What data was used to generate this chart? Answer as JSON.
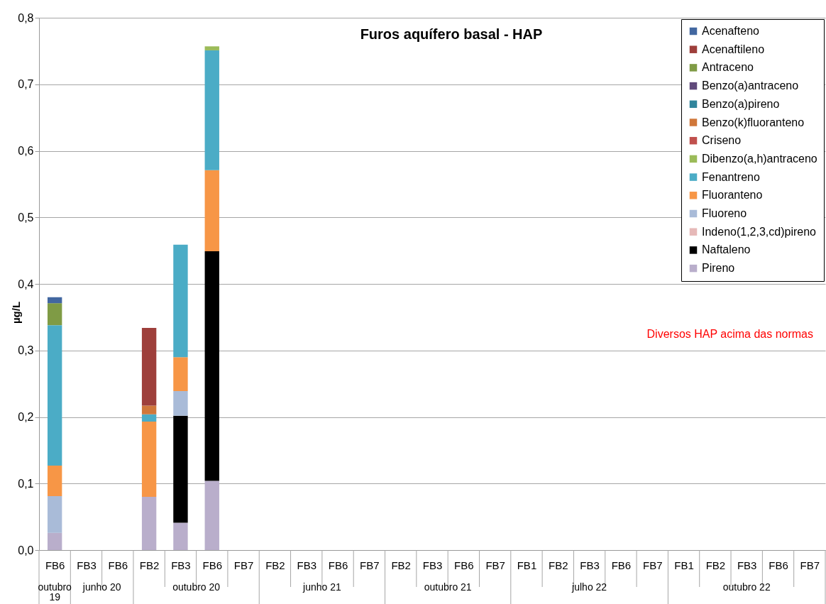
{
  "chart_data": {
    "type": "bar",
    "stacked": true,
    "title": "Furos aquífero basal - HAP",
    "ylabel": "µg/L",
    "categories": [
      "FB6",
      "FB3",
      "FB6",
      "FB2",
      "FB3",
      "FB6",
      "FB7",
      "FB2",
      "FB3",
      "FB6",
      "FB7",
      "FB2",
      "FB3",
      "FB6",
      "FB7",
      "FB1",
      "FB2",
      "FB3",
      "FB6",
      "FB7",
      "FB1",
      "FB2",
      "FB3",
      "FB6",
      "FB7"
    ],
    "annotations": [
      "outubro 19",
      "junho 20",
      "outubro 20",
      "junho 21",
      "outubro 21",
      "julho 22",
      "outubro 22",
      "Diversos HAP acima das normas"
    ],
    "ylim": [
      0,
      0.8
    ],
    "yticks": [
      {
        "value": 0,
        "label": "0,0"
      },
      {
        "value": 0.1,
        "label": "0,1"
      },
      {
        "value": 0.2,
        "label": "0,2"
      },
      {
        "value": 0.3,
        "label": "0,3"
      },
      {
        "value": 0.4,
        "label": "0,4"
      },
      {
        "value": 0.5,
        "label": "0,5"
      },
      {
        "value": 0.6,
        "label": "0,6"
      },
      {
        "value": 0.7,
        "label": "0,7"
      },
      {
        "value": 0.8,
        "label": "0,8"
      }
    ],
    "grid": "y",
    "legend": "top right",
    "series": [
      {
        "name": "Pireno",
        "color": "#b9aecb",
        "values": [
          0.026,
          null,
          null,
          0.08,
          0.041,
          0.104,
          null,
          null,
          null,
          null,
          null,
          null,
          null,
          null,
          null,
          null,
          null,
          null,
          null,
          null,
          null,
          null,
          null,
          null,
          null
        ]
      },
      {
        "name": "Naftaleno",
        "color": "#000000",
        "values": [
          null,
          null,
          null,
          null,
          0.161,
          0.345,
          null,
          null,
          null,
          null,
          null,
          null,
          null,
          null,
          null,
          null,
          null,
          null,
          null,
          null,
          null,
          null,
          null,
          null,
          null
        ]
      },
      {
        "name": "Indeno(1,2,3,cd)pireno",
        "color": "#e6b9b8",
        "values": [
          null,
          null,
          null,
          null,
          null,
          null,
          null,
          null,
          null,
          null,
          null,
          null,
          null,
          null,
          null,
          null,
          null,
          null,
          null,
          null,
          null,
          null,
          null,
          null,
          null
        ]
      },
      {
        "name": "Fluoreno",
        "color": "#a9bbd8",
        "values": [
          0.055,
          null,
          null,
          null,
          0.037,
          null,
          null,
          null,
          null,
          null,
          null,
          null,
          null,
          null,
          null,
          null,
          null,
          null,
          null,
          null,
          null,
          null,
          null,
          null,
          null
        ]
      },
      {
        "name": "Fluoranteno",
        "color": "#f79646",
        "values": [
          0.046,
          null,
          null,
          0.113,
          0.051,
          0.122,
          null,
          null,
          null,
          null,
          null,
          null,
          null,
          null,
          null,
          null,
          null,
          null,
          null,
          null,
          null,
          null,
          null,
          null,
          null
        ]
      },
      {
        "name": "Fenantreno",
        "color": "#4bacc6",
        "values": [
          0.211,
          null,
          null,
          0.011,
          0.169,
          0.18,
          null,
          null,
          null,
          null,
          null,
          null,
          null,
          null,
          null,
          null,
          null,
          null,
          null,
          null,
          null,
          null,
          null,
          null,
          null
        ]
      },
      {
        "name": "Dibenzo(a,h)antraceno",
        "color": "#9bbb59",
        "values": [
          null,
          null,
          null,
          null,
          null,
          0.006,
          null,
          null,
          null,
          null,
          null,
          null,
          null,
          null,
          null,
          null,
          null,
          null,
          null,
          null,
          null,
          null,
          null,
          null,
          null
        ]
      },
      {
        "name": "Criseno",
        "color": "#c0504d",
        "values": [
          null,
          null,
          null,
          null,
          null,
          null,
          null,
          null,
          null,
          null,
          null,
          null,
          null,
          null,
          null,
          null,
          null,
          null,
          null,
          null,
          null,
          null,
          null,
          null,
          null
        ]
      },
      {
        "name": "Benzo(k)fluoranteno",
        "color": "#d0773a",
        "values": [
          null,
          null,
          null,
          0.013,
          null,
          null,
          null,
          null,
          null,
          null,
          null,
          null,
          null,
          null,
          null,
          null,
          null,
          null,
          null,
          null,
          null,
          null,
          null,
          null,
          null
        ]
      },
      {
        "name": "Benzo(a)pireno",
        "color": "#31859c",
        "values": [
          null,
          null,
          null,
          null,
          null,
          null,
          null,
          null,
          null,
          null,
          null,
          null,
          null,
          null,
          null,
          null,
          null,
          null,
          null,
          null,
          null,
          null,
          null,
          null,
          null
        ]
      },
      {
        "name": "Benzo(a)antraceno",
        "color": "#604a7b",
        "values": [
          null,
          null,
          null,
          null,
          null,
          null,
          null,
          null,
          null,
          null,
          null,
          null,
          null,
          null,
          null,
          null,
          null,
          null,
          null,
          null,
          null,
          null,
          null,
          null,
          null
        ]
      },
      {
        "name": "Antraceno",
        "color": "#7f9b45",
        "values": [
          0.033,
          null,
          null,
          null,
          null,
          null,
          null,
          null,
          null,
          null,
          null,
          null,
          null,
          null,
          null,
          null,
          null,
          null,
          null,
          null,
          null,
          null,
          null,
          null,
          null
        ]
      },
      {
        "name": "Acenaftileno",
        "color": "#9e3f3b",
        "values": [
          null,
          null,
          null,
          0.117,
          null,
          null,
          null,
          null,
          null,
          null,
          null,
          null,
          null,
          null,
          null,
          null,
          null,
          null,
          null,
          null,
          null,
          null,
          null,
          null,
          null
        ]
      },
      {
        "name": "Acenafteno",
        "color": "#4267a0",
        "values": [
          0.009,
          null,
          null,
          null,
          null,
          null,
          null,
          null,
          null,
          null,
          null,
          null,
          null,
          null,
          null,
          null,
          null,
          null,
          null,
          null,
          null,
          null,
          null,
          null,
          null
        ]
      }
    ]
  }
}
